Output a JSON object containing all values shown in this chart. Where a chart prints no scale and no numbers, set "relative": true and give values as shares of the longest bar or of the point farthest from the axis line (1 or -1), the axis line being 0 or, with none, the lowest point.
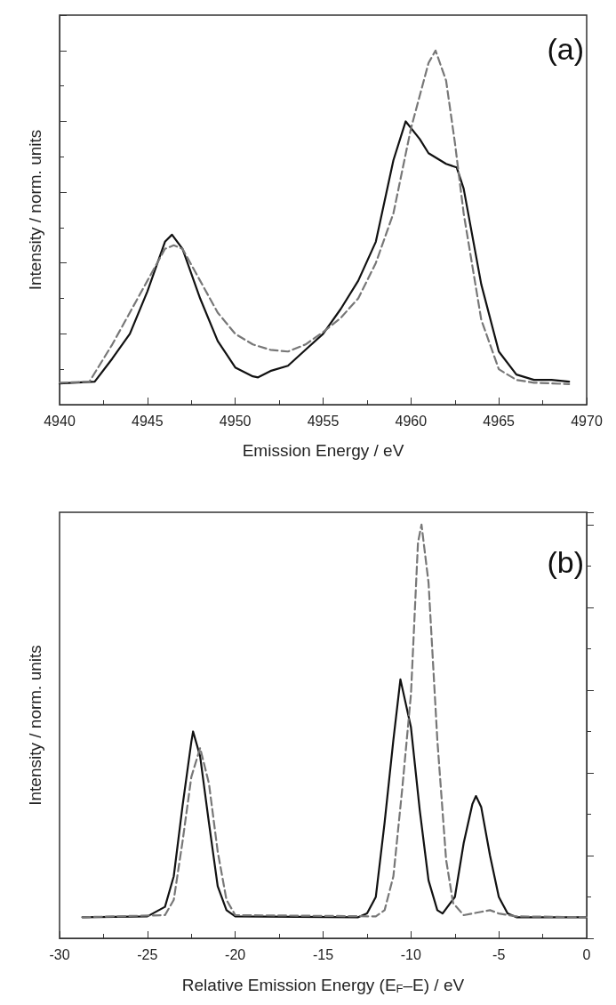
{
  "chart_data": [
    {
      "type": "line",
      "relative": true,
      "xlabel": "Emission Energy / eV",
      "ylabel": "Intensity / norm. units",
      "xlim": [
        4940,
        4970
      ],
      "xticks": [
        4940,
        4945,
        4950,
        4955,
        4960,
        4965,
        4970
      ],
      "tick_labels": "x",
      "grid": false,
      "marker": "none",
      "annotations": [
        "(a)"
      ],
      "series": [
        {
          "color": "#111111",
          "line_style": "solid",
          "x": [
            4940,
            4942,
            4943,
            4944,
            4945,
            4946,
            4946.4,
            4947,
            4948,
            4949,
            4950,
            4951,
            4951.3,
            4952,
            4953,
            4954,
            4955,
            4956,
            4957,
            4958,
            4959,
            4959.7,
            4960.5,
            4961,
            4962,
            4962.6,
            4963,
            4964,
            4965,
            4966,
            4967,
            4968,
            4969
          ],
          "values": [
            0.06,
            0.065,
            0.13,
            0.2,
            0.32,
            0.46,
            0.48,
            0.44,
            0.3,
            0.18,
            0.105,
            0.08,
            0.077,
            0.095,
            0.11,
            0.155,
            0.2,
            0.27,
            0.35,
            0.46,
            0.69,
            0.8,
            0.75,
            0.71,
            0.68,
            0.67,
            0.61,
            0.34,
            0.15,
            0.085,
            0.07,
            0.07,
            0.065
          ]
        },
        {
          "color": "#777777",
          "line_style": "dashed",
          "x": [
            4940,
            4941.7,
            4943,
            4944,
            4945,
            4946,
            4946.5,
            4947,
            4948,
            4949,
            4950,
            4951,
            4952,
            4953,
            4954,
            4955,
            4956,
            4957,
            4958,
            4959,
            4960,
            4961,
            4961.4,
            4962,
            4962.5,
            4963,
            4964,
            4965,
            4966,
            4967,
            4969
          ],
          "values": [
            0.062,
            0.065,
            0.17,
            0.26,
            0.35,
            0.44,
            0.45,
            0.44,
            0.35,
            0.26,
            0.2,
            0.17,
            0.155,
            0.15,
            0.17,
            0.205,
            0.245,
            0.3,
            0.4,
            0.54,
            0.78,
            0.965,
            1.0,
            0.915,
            0.74,
            0.54,
            0.24,
            0.1,
            0.07,
            0.062,
            0.058
          ]
        }
      ]
    },
    {
      "type": "line",
      "relative": true,
      "xlabel": "Relative Emission Energy (E$_{F}$–E) / eV",
      "ylabel": "Intensity / norm. units",
      "xlim": [
        -30,
        0
      ],
      "xticks": [
        -30,
        -25,
        -20,
        -15,
        -10,
        -5,
        0
      ],
      "tick_labels": "x",
      "grid": false,
      "marker": "none",
      "annotations": [
        "(b)"
      ],
      "series": [
        {
          "color": "#111111",
          "line_style": "solid",
          "x": [
            -28.7,
            -25,
            -24,
            -23.5,
            -23,
            -22.5,
            -22.4,
            -22,
            -21.5,
            -21,
            -20.5,
            -20,
            -13,
            -12.5,
            -12,
            -11.5,
            -11,
            -10.6,
            -10,
            -9.5,
            -9,
            -8.5,
            -8.2,
            -7.5,
            -7,
            -6.5,
            -6.3,
            -6,
            -5.5,
            -5,
            -4.5,
            -4,
            0
          ],
          "values": [
            0.051,
            0.053,
            0.076,
            0.15,
            0.32,
            0.475,
            0.5,
            0.44,
            0.28,
            0.126,
            0.068,
            0.053,
            0.051,
            0.06,
            0.1,
            0.28,
            0.48,
            0.626,
            0.51,
            0.31,
            0.14,
            0.068,
            0.06,
            0.1,
            0.23,
            0.325,
            0.344,
            0.317,
            0.2,
            0.1,
            0.06,
            0.051,
            0.051
          ]
        },
        {
          "color": "#777777",
          "line_style": "dashed",
          "x": [
            -28.7,
            -24,
            -23.5,
            -23,
            -22.5,
            -22,
            -21.5,
            -21,
            -20.5,
            -20,
            -12,
            -11.5,
            -11,
            -10.5,
            -10,
            -9.6,
            -9.4,
            -9,
            -8.5,
            -8,
            -7.6,
            -7,
            -6,
            -5.5,
            -5,
            -4,
            0
          ],
          "values": [
            0.051,
            0.056,
            0.093,
            0.234,
            0.39,
            0.46,
            0.375,
            0.21,
            0.093,
            0.056,
            0.053,
            0.068,
            0.15,
            0.36,
            0.59,
            0.957,
            1.0,
            0.86,
            0.48,
            0.19,
            0.085,
            0.056,
            0.064,
            0.068,
            0.06,
            0.053,
            0.051
          ]
        }
      ]
    }
  ]
}
